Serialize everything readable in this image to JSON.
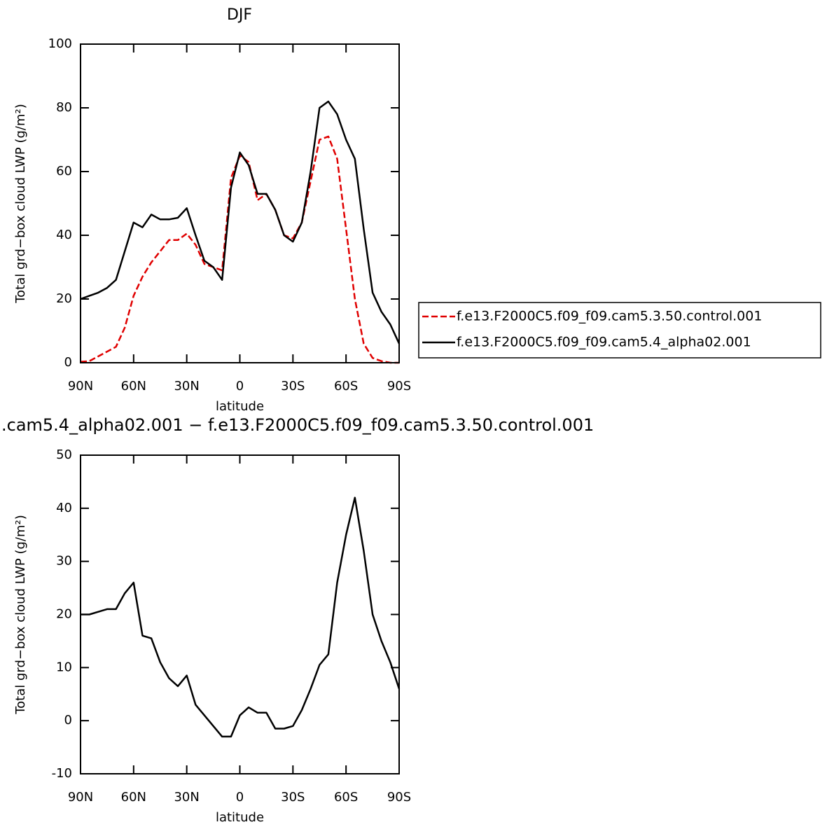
{
  "chart_data": [
    {
      "type": "line",
      "title": "DJF",
      "xlabel": "latitude",
      "ylabel": "Total grd−box cloud LWP (g/m²)",
      "x": [
        90,
        85,
        80,
        75,
        70,
        65,
        60,
        55,
        50,
        45,
        40,
        35,
        30,
        25,
        20,
        15,
        10,
        5,
        0,
        -5,
        -10,
        -15,
        -20,
        -25,
        -30,
        -35,
        -40,
        -45,
        -50,
        -55,
        -60,
        -65,
        -70,
        -75,
        -80,
        -85,
        -90
      ],
      "series": [
        {
          "name": "f.e13.F2000C5.f09_f09.cam5.3.50.control.001",
          "color": "#e00000",
          "linestyle": "dashed",
          "values": [
            0.3,
            0.5,
            2,
            3.5,
            5,
            11,
            21,
            27,
            31.5,
            35,
            38.5,
            38.5,
            40.5,
            37,
            31,
            30,
            29,
            58,
            65,
            63,
            51,
            53,
            48,
            40,
            39,
            44,
            57,
            70,
            71,
            64,
            42,
            20,
            6,
            1.5,
            0.5,
            0,
            0
          ]
        },
        {
          "name": "f.e13.F2000C5.f09_f09.cam5.4_alpha02.001",
          "color": "#000000",
          "linestyle": "solid",
          "values": [
            20,
            21,
            22,
            23.5,
            26,
            35,
            44,
            42.5,
            46.5,
            45,
            45,
            45.5,
            48.5,
            40,
            32,
            30,
            26,
            55,
            66,
            62,
            53,
            53,
            48,
            40,
            38,
            44,
            60,
            80,
            82,
            78,
            70,
            64,
            42,
            22,
            16,
            12,
            6
          ]
        }
      ],
      "xlim": [
        90,
        -90
      ],
      "xticks": [
        {
          "value": 90,
          "label": "90N"
        },
        {
          "value": 60,
          "label": "60N"
        },
        {
          "value": 30,
          "label": "30N"
        },
        0,
        {
          "value": -30,
          "label": "30S"
        },
        {
          "value": -60,
          "label": "60S"
        },
        {
          "value": -90,
          "label": "90S"
        }
      ],
      "ylim": [
        0,
        100
      ],
      "yticks": [
        0,
        20,
        40,
        60,
        80,
        100
      ],
      "legend": "right"
    },
    {
      "type": "line",
      "title": ".cam5.4_alpha02.001 − f.e13.F2000C5.f09_f09.cam5.3.50.control.001",
      "xlabel": "latitude",
      "ylabel": "Total grd−box cloud LWP (g/m²)",
      "x": [
        90,
        85,
        80,
        75,
        70,
        65,
        60,
        55,
        50,
        45,
        40,
        35,
        30,
        25,
        20,
        15,
        10,
        5,
        0,
        -5,
        -10,
        -15,
        -20,
        -25,
        -30,
        -35,
        -40,
        -45,
        -50,
        -55,
        -60,
        -65,
        -70,
        -75,
        -80,
        -85,
        -90
      ],
      "series": [
        {
          "color": "#000000",
          "linestyle": "solid",
          "values": [
            20,
            20,
            20.5,
            21,
            21,
            24,
            26,
            16,
            15.5,
            11,
            8,
            6.5,
            8.5,
            3,
            1,
            -1,
            -3,
            -3,
            1,
            2.5,
            1.5,
            1.5,
            -1.5,
            -1.5,
            -1,
            2,
            6,
            10.5,
            12.5,
            26,
            35,
            42,
            32,
            20,
            15,
            11,
            6
          ]
        }
      ],
      "xlim": [
        90,
        -90
      ],
      "xticks": [
        {
          "value": 90,
          "label": "90N"
        },
        {
          "value": 60,
          "label": "60N"
        },
        {
          "value": 30,
          "label": "30N"
        },
        0,
        {
          "value": -30,
          "label": "30S"
        },
        {
          "value": -60,
          "label": "60S"
        },
        {
          "value": -90,
          "label": "90S"
        }
      ],
      "ylim": [
        -10,
        50
      ],
      "yticks": [
        -10,
        0,
        10,
        20,
        30,
        40,
        50
      ]
    }
  ]
}
